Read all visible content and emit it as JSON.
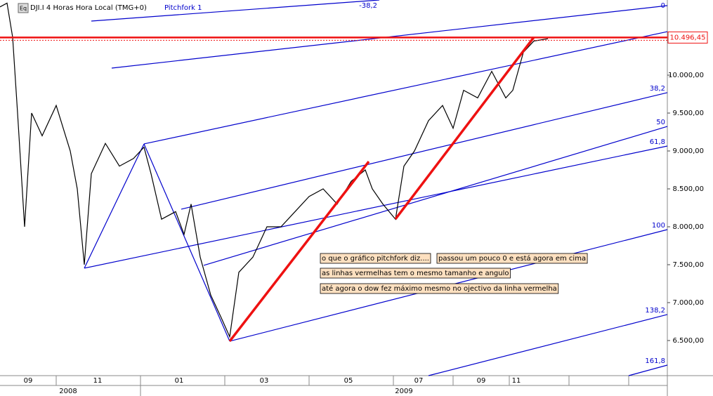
{
  "chart_data": {
    "type": "line",
    "title": "DJI.I 4 Horas Hora Local (TMG+0)",
    "indicator": "Pitchfork 1",
    "x": [
      0,
      10,
      18,
      25,
      35,
      45,
      60,
      80,
      100,
      110,
      120,
      130,
      150,
      170,
      190,
      205,
      215,
      230,
      250,
      262,
      272,
      285,
      300,
      315,
      327,
      340,
      360,
      380,
      400,
      420,
      440,
      460,
      480,
      500,
      520,
      530,
      545,
      563,
      575,
      590,
      610,
      630,
      645,
      660,
      680,
      700,
      720,
      730,
      745,
      760,
      780
    ],
    "series": [
      {
        "color": "#000000",
        "values": [
          10900,
          10950,
          10500,
          9500,
          8000,
          9500,
          9200,
          9600,
          9000,
          8500,
          7500,
          8700,
          9100,
          8800,
          8900,
          9050,
          8700,
          8100,
          8200,
          7900,
          8300,
          7600,
          7100,
          6800,
          6550,
          7400,
          7600,
          8000,
          8000,
          8200,
          8400,
          8500,
          8300,
          8600,
          8750,
          8500,
          8300,
          8100,
          8800,
          9000,
          9400,
          9600,
          9300,
          9800,
          9700,
          10050,
          9700,
          9800,
          10300,
          10450,
          10480
        ]
      }
    ],
    "xlim": [
      0,
      950
    ],
    "xticks": [
      {
        "value": 40,
        "label": "09"
      },
      {
        "value": 139,
        "label": "11"
      },
      {
        "value": 255,
        "label": "01"
      },
      {
        "value": 376,
        "label": "03"
      },
      {
        "value": 496,
        "label": "05"
      },
      {
        "value": 596,
        "label": "07"
      },
      {
        "value": 685,
        "label": "09"
      },
      {
        "value": 735,
        "label": "11"
      }
    ],
    "year_ticks": [
      {
        "value": 97,
        "label": "2008"
      },
      {
        "value": 575,
        "label": "2009"
      }
    ],
    "ylim": [
      6037,
      10991
    ],
    "yticks": [
      {
        "value": 6500,
        "label": "6.500,00"
      },
      {
        "value": 7000,
        "label": "7.000,00"
      },
      {
        "value": 7500,
        "label": "7.500,00"
      },
      {
        "value": 8000,
        "label": "8.000,00"
      },
      {
        "value": 8500,
        "label": "8.500,00"
      },
      {
        "value": 9000,
        "label": "9.000,00"
      },
      {
        "value": 9500,
        "label": "9.500,00"
      },
      {
        "value": 10000,
        "label": "10.000,00"
      }
    ],
    "last_price": {
      "value": 10496.45,
      "label": "10.496,45"
    },
    "pitchfork_color": "#0000cc",
    "red_color": "#ee1111",
    "pitchfork_lines": [
      {
        "label": "-38,2",
        "x": [
          130,
          540
        ],
        "y": [
          10713,
          10991
        ]
      },
      {
        "label": "0",
        "x": [
          159,
          950
        ],
        "y": [
          10093,
          10917
        ]
      },
      {
        "x": [
          205,
          950
        ],
        "y": [
          9093,
          10574
        ]
      },
      {
        "label": "38,2",
        "x": [
          258,
          950
        ],
        "y": [
          8232,
          9769
        ]
      },
      {
        "label": "50",
        "x": [
          290,
          950
        ],
        "y": [
          7491,
          9324
        ]
      },
      {
        "label": "61,8",
        "x": [
          120,
          950
        ],
        "y": [
          7454,
          9065
        ]
      },
      {
        "label": "100",
        "x": [
          327,
          950
        ],
        "y": [
          6491,
          7963
        ]
      },
      {
        "label": "138,2",
        "x": [
          610,
          950
        ],
        "y": [
          6037,
          6843
        ]
      },
      {
        "label": "161,8",
        "x": [
          895,
          950
        ],
        "y": [
          6037,
          6176
        ]
      },
      {
        "x": [
          205,
          327
        ],
        "y": [
          9093,
          6491
        ]
      },
      {
        "x": [
          120,
          205
        ],
        "y": [
          7454,
          9093
        ]
      }
    ],
    "red_lines": [
      {
        "x": [
          327,
          525
        ],
        "y": [
          6491,
          8861
        ]
      },
      {
        "x": [
          563,
          760
        ],
        "y": [
          8102,
          10500
        ]
      }
    ],
    "notes": [
      "o que o gráfico pitchfork diz....",
      "passou um pouco 0 e está agora em cima",
      "as linhas vermelhas tem o mesmo tamanho e angulo",
      "até agora o dow fez máximo mesmo no ojectivo da linha vermelha"
    ]
  }
}
